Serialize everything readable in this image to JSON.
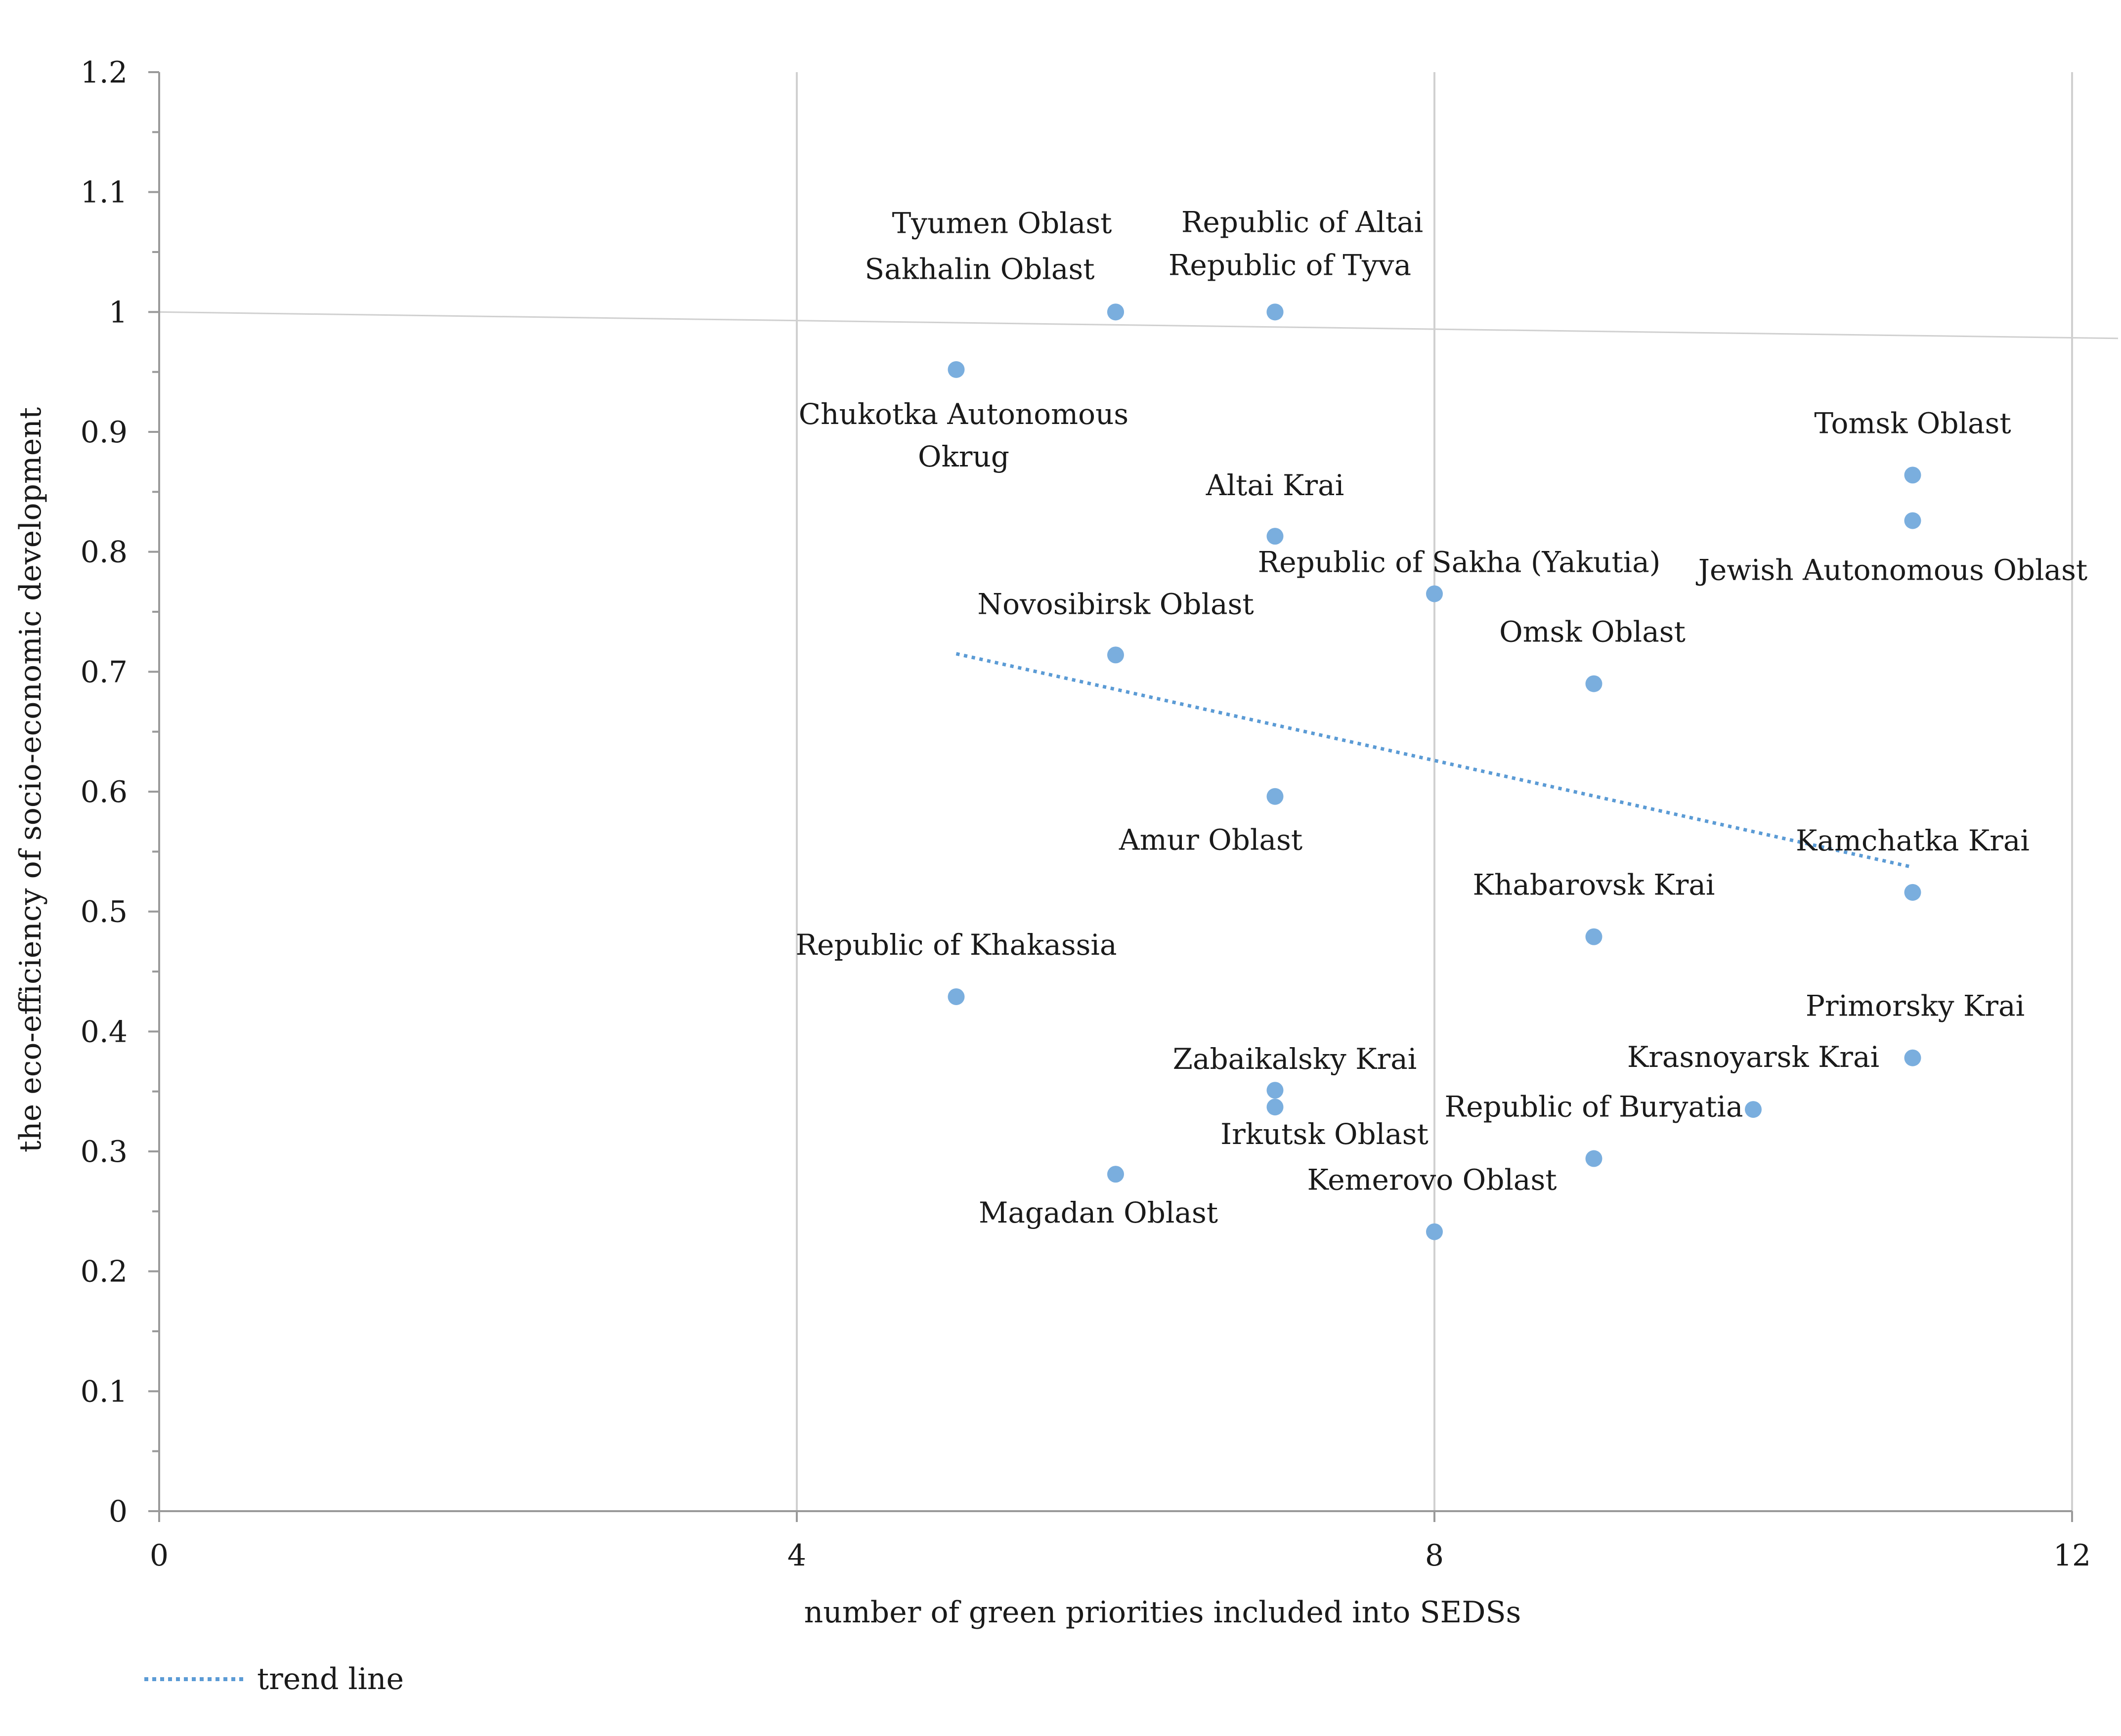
{
  "chart_data": {
    "type": "scatter",
    "xlabel": "number of green priorities included into SEDSs",
    "ylabel": "the eco-efficiency of socio-economic development",
    "xlim": [
      0,
      12
    ],
    "ylim": [
      0,
      1.2
    ],
    "x_ticks": [
      "0",
      "4",
      "8",
      "12"
    ],
    "y_ticks": [
      "0",
      "0.1",
      "0.2",
      "0.3",
      "0.4",
      "0.5",
      "0.6",
      "0.7",
      "0.8",
      "0.9",
      "1",
      "1.1",
      "1.2"
    ],
    "grid": "vertical major gridlines",
    "colors": {
      "points": "#7aaede",
      "trend": "#5b9bd5",
      "grid": "#d0d0d0",
      "axis": "#9a9a9a"
    },
    "points": [
      {
        "label": "Tyumen Oblast",
        "x": 6,
        "y": 1.0
      },
      {
        "label": "Sakhalin Oblast",
        "x": 6,
        "y": 1.0
      },
      {
        "label": "Republic of Altai",
        "x": 7,
        "y": 1.0
      },
      {
        "label": "Republic of Tyva",
        "x": 7,
        "y": 1.0
      },
      {
        "label": "Chukotka Autonomous Okrug",
        "x": 5,
        "y": 0.952
      },
      {
        "label": "Tomsk Oblast",
        "x": 11,
        "y": 0.864
      },
      {
        "label": "Jewish Autonomous Oblast",
        "x": 11,
        "y": 0.826
      },
      {
        "label": "Altai Krai",
        "x": 7,
        "y": 0.813
      },
      {
        "label": "Republic of Sakha (Yakutia)",
        "x": 8,
        "y": 0.765
      },
      {
        "label": "Novosibirsk Oblast",
        "x": 6,
        "y": 0.714
      },
      {
        "label": "Omsk Oblast",
        "x": 9,
        "y": 0.69
      },
      {
        "label": "Amur Oblast",
        "x": 7,
        "y": 0.596
      },
      {
        "label": "Kamchatka Krai",
        "x": 11,
        "y": 0.516
      },
      {
        "label": "Khabarovsk Krai",
        "x": 9,
        "y": 0.479
      },
      {
        "label": "Republic of Khakassia",
        "x": 5,
        "y": 0.429
      },
      {
        "label": "Primorsky Krai",
        "x": 11,
        "y": 0.378
      },
      {
        "label": "Zabaikalsky Krai",
        "x": 7,
        "y": 0.351
      },
      {
        "label": "Irkutsk Oblast",
        "x": 7,
        "y": 0.337
      },
      {
        "label": "Krasnoyarsk Krai",
        "x": 10,
        "y": 0.335
      },
      {
        "label": "Republic of Buryatia",
        "x": 9,
        "y": 0.294
      },
      {
        "label": "Magadan Oblast",
        "x": 6,
        "y": 0.281
      },
      {
        "label": "Kemerovo Oblast",
        "x": 8,
        "y": 0.233
      }
    ],
    "trend_line": {
      "name": "trend line",
      "style": "dotted",
      "from": {
        "x": 5,
        "y": 0.715
      },
      "to": {
        "x": 11,
        "y": 0.537
      }
    },
    "legend": {
      "position": "bottom-left",
      "label": "trend line"
    }
  }
}
